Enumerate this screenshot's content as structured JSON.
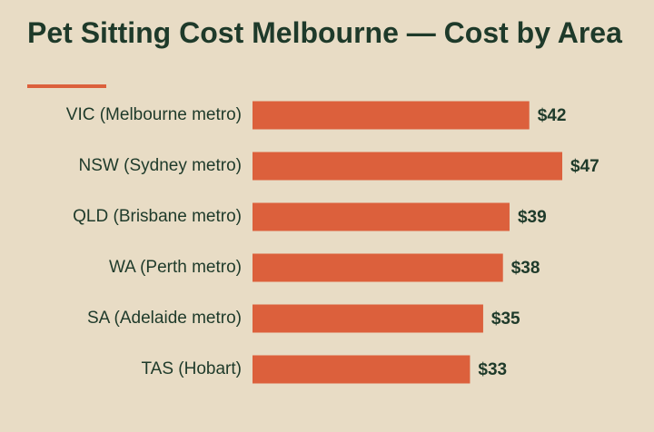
{
  "chart_data": {
    "type": "bar",
    "orientation": "horizontal",
    "title": "Pet Sitting Cost Melbourne — Cost by Area",
    "categories": [
      "VIC (Melbourne metro)",
      "NSW (Sydney metro)",
      "QLD (Brisbane metro)",
      "WA (Perth metro)",
      "SA (Adelaide metro)",
      "TAS (Hobart)"
    ],
    "values": [
      42,
      47,
      39,
      38,
      35,
      33
    ],
    "value_labels": [
      "$42",
      "$47",
      "$39",
      "$38",
      "$35",
      "$33"
    ],
    "color": "#dc603c"
  }
}
